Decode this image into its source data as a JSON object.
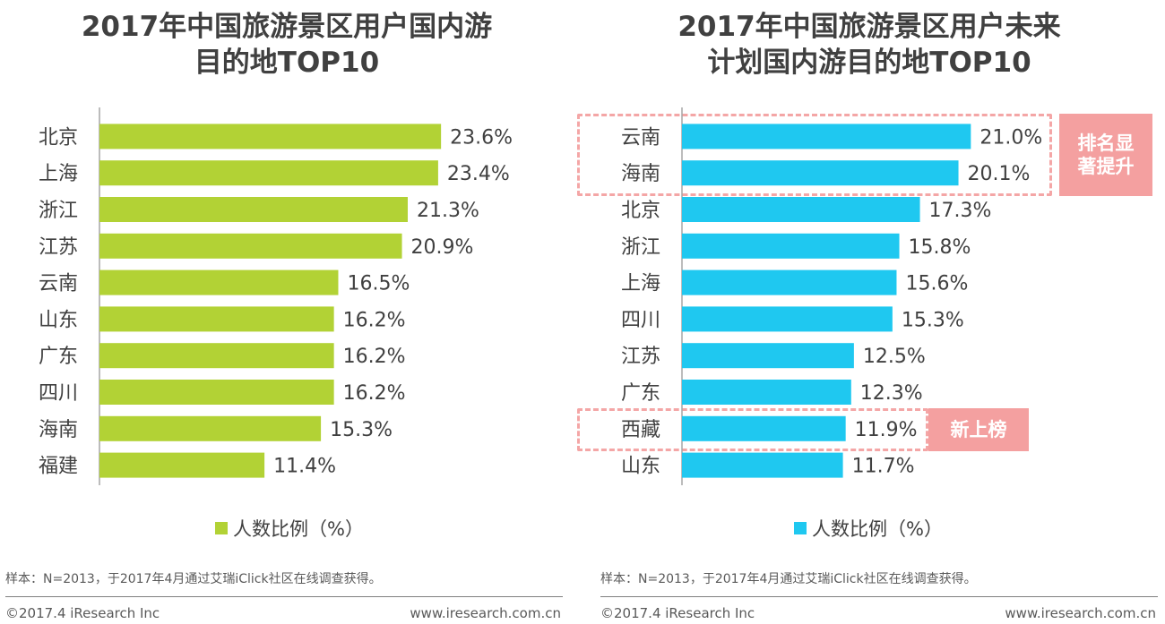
{
  "chart_data": [
    {
      "type": "bar",
      "orientation": "horizontal",
      "title": "2017年中国旅游景区用户国内游目的地TOP10",
      "title_lines": [
        "2017年中国旅游景区用户国内游",
        "目的地TOP10"
      ],
      "categories": [
        "北京",
        "上海",
        "浙江",
        "江苏",
        "云南",
        "山东",
        "广东",
        "四川",
        "海南",
        "福建"
      ],
      "values": [
        23.6,
        23.4,
        21.3,
        20.9,
        16.5,
        16.2,
        16.2,
        16.2,
        15.3,
        11.4
      ],
      "value_labels": [
        "23.6%",
        "23.4%",
        "21.3%",
        "20.9%",
        "16.5%",
        "16.2%",
        "16.2%",
        "16.2%",
        "15.3%",
        "11.4%"
      ],
      "legend": "人数比例（%）",
      "color": "#b2d235",
      "xlim": [
        0,
        30
      ]
    },
    {
      "type": "bar",
      "orientation": "horizontal",
      "title": "2017年中国旅游景区用户未来计划国内游目的地TOP10",
      "title_lines": [
        "2017年中国旅游景区用户未来",
        "计划国内游目的地TOP10"
      ],
      "categories": [
        "云南",
        "海南",
        "北京",
        "浙江",
        "上海",
        "四川",
        "江苏",
        "广东",
        "西藏",
        "山东"
      ],
      "values": [
        21.0,
        20.1,
        17.3,
        15.8,
        15.6,
        15.3,
        12.5,
        12.3,
        11.9,
        11.7
      ],
      "value_labels": [
        "21.0%",
        "20.1%",
        "17.3%",
        "15.8%",
        "15.6%",
        "15.3%",
        "12.5%",
        "12.3%",
        "11.9%",
        "11.7%"
      ],
      "legend": "人数比例（%）",
      "color": "#1fc8f0",
      "xlim": [
        0,
        30
      ],
      "annotations": [
        {
          "label": "排名显著提升",
          "label_lines": [
            "排名显",
            "著提升"
          ],
          "rows": [
            "云南",
            "海南"
          ]
        },
        {
          "label": "新上榜",
          "label_lines": [
            "新上榜"
          ],
          "rows": [
            "西藏"
          ]
        }
      ]
    }
  ],
  "footer": {
    "note": "样本：N=2013，于2017年4月通过艾瑞iClick社区在线调查获得。",
    "copyright": "©2017.4 iResearch Inc",
    "website": "www.iresearch.com.cn"
  },
  "colors": {
    "annotation": "#f4a0a0",
    "text": "#404040"
  }
}
